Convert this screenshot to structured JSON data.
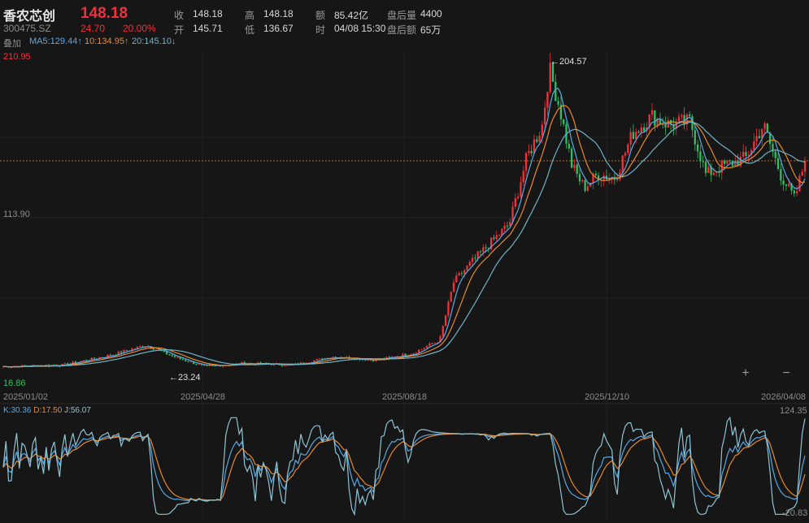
{
  "header": {
    "name": "香农芯创",
    "code": "300475.SZ",
    "price": "148.18",
    "change": "24.70",
    "change_pct": "20.00%",
    "stats": [
      {
        "label": "收",
        "value": "148.18"
      },
      {
        "label": "高",
        "value": "148.18"
      },
      {
        "label": "额",
        "value": "85.42亿"
      },
      {
        "label": "盘后量",
        "value": "4400"
      },
      {
        "label": "开",
        "value": "145.71"
      },
      {
        "label": "低",
        "value": "136.67"
      },
      {
        "label": "时",
        "value": "04/08 15:30"
      },
      {
        "label": "盘后额",
        "value": "65万"
      }
    ]
  },
  "indicators": {
    "overlay_label": "叠加",
    "ma5": "MA5:129.44↑",
    "ma10": "10:134.95↑",
    "ma20": "20:145.10↓"
  },
  "price_axis": {
    "top": "210.95",
    "mid": "113.90",
    "bottom": "16.86"
  },
  "annotations": {
    "high": "←204.57",
    "low": "←23.24"
  },
  "date_axis": [
    "2025/01/02",
    "2025/04/28",
    "2025/08/18",
    "2025/12/10",
    "2026/04/08"
  ],
  "kdj": {
    "label": "K:30.36 D:17.50 J:56.07",
    "k": "K:30.36",
    "d": "D:17.50",
    "j": "J:56.07",
    "axis_top": "124.35",
    "axis_bottom": "-20.83"
  },
  "controls": {
    "zoom_in": "+",
    "zoom_out": "−"
  },
  "colors": {
    "up": "#f0303a",
    "down": "#2fbf62",
    "ma5": "#5aa9e6",
    "ma10": "#e8892e",
    "ma20": "#6fb3c8",
    "bg": "#161616"
  },
  "chart_data": {
    "type": "candlestick",
    "ylim": [
      16.86,
      210.95
    ],
    "x_range": [
      "2025/01/02",
      "2026/04/08"
    ],
    "last_close": 148.18,
    "marked_high": 204.57,
    "marked_low": 23.24,
    "close_path": [
      {
        "x": "2025/01/02",
        "y": 24
      },
      {
        "x": "2025/02/05",
        "y": 25
      },
      {
        "x": "2025/03/05",
        "y": 31
      },
      {
        "x": "2025/03/25",
        "y": 37
      },
      {
        "x": "2025/04/10",
        "y": 30
      },
      {
        "x": "2025/04/28",
        "y": 24
      },
      {
        "x": "2025/05/20",
        "y": 26
      },
      {
        "x": "2025/06/18",
        "y": 25
      },
      {
        "x": "2025/07/10",
        "y": 30
      },
      {
        "x": "2025/08/05",
        "y": 28
      },
      {
        "x": "2025/08/25",
        "y": 32
      },
      {
        "x": "2025/09/10",
        "y": 40
      },
      {
        "x": "2025/09/18",
        "y": 75
      },
      {
        "x": "2025/10/01",
        "y": 90
      },
      {
        "x": "2025/10/20",
        "y": 110
      },
      {
        "x": "2025/10/30",
        "y": 150
      },
      {
        "x": "2025/11/08",
        "y": 170
      },
      {
        "x": "2025/11/12",
        "y": 204
      },
      {
        "x": "2025/11/18",
        "y": 180
      },
      {
        "x": "2025/11/25",
        "y": 145
      },
      {
        "x": "2025/12/02",
        "y": 132
      },
      {
        "x": "2025/12/10",
        "y": 140
      },
      {
        "x": "2025/12/20",
        "y": 138
      },
      {
        "x": "2025/12/30",
        "y": 165
      },
      {
        "x": "2026/01/10",
        "y": 175
      },
      {
        "x": "2026/01/20",
        "y": 170
      },
      {
        "x": "2026/02/01",
        "y": 172
      },
      {
        "x": "2026/02/10",
        "y": 140
      },
      {
        "x": "2026/02/20",
        "y": 145
      },
      {
        "x": "2026/03/05",
        "y": 150
      },
      {
        "x": "2026/03/15",
        "y": 170
      },
      {
        "x": "2026/03/25",
        "y": 140
      },
      {
        "x": "2026/04/02",
        "y": 125
      },
      {
        "x": "2026/04/08",
        "y": 148
      }
    ]
  }
}
